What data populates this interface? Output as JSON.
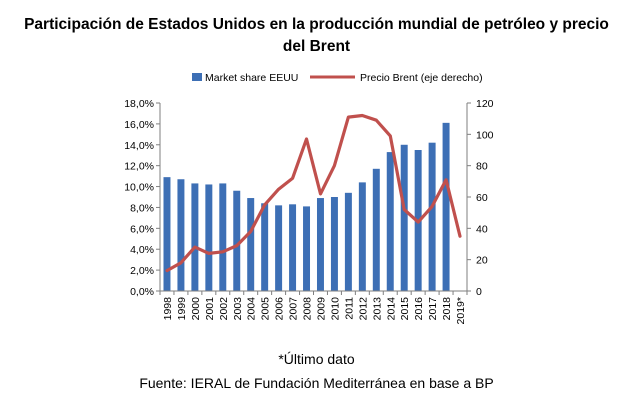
{
  "chart_data": {
    "type": "bar",
    "title_line1": "Participación de Estados Unidos en la producción mundial de petróleo y precio",
    "title_line2": "del Brent",
    "categories": [
      "1998",
      "1999",
      "2000",
      "2001",
      "2002",
      "2003",
      "2004",
      "2005",
      "2006",
      "2007",
      "2008",
      "2009",
      "2010",
      "2011",
      "2012",
      "2013",
      "2014",
      "2015",
      "2016",
      "2017",
      "2018",
      "2019*"
    ],
    "series": [
      {
        "name": "Market share EEUU",
        "kind": "bar",
        "axis": "left",
        "color": "#3D6FB5",
        "values": [
          10.9,
          10.7,
          10.3,
          10.2,
          10.3,
          9.6,
          8.9,
          8.4,
          8.2,
          8.3,
          8.1,
          8.9,
          9.0,
          9.4,
          10.4,
          11.7,
          13.3,
          14.0,
          13.5,
          14.2,
          16.1,
          null
        ]
      },
      {
        "name": "Precio Brent (eje derecho)",
        "kind": "line",
        "axis": "right",
        "color": "#C0504D",
        "values": [
          13,
          18,
          28,
          24,
          25,
          29,
          38,
          55,
          65,
          72,
          97,
          62,
          80,
          111,
          112,
          109,
          99,
          52,
          44,
          54,
          71,
          35
        ]
      }
    ],
    "left_axis": {
      "min": 0,
      "max": 18,
      "step": 2,
      "tick_labels": [
        "0,0%",
        "2,0%",
        "4,0%",
        "6,0%",
        "8,0%",
        "10,0%",
        "12,0%",
        "14,0%",
        "16,0%",
        "18,0%"
      ]
    },
    "right_axis": {
      "min": 0,
      "max": 120,
      "step": 20,
      "tick_labels": [
        "0",
        "20",
        "40",
        "60",
        "80",
        "100",
        "120"
      ]
    },
    "legend_position": "top",
    "grid": false
  },
  "footnote": "*Último dato",
  "source": "Fuente: IERAL de Fundación Mediterránea en base a BP"
}
